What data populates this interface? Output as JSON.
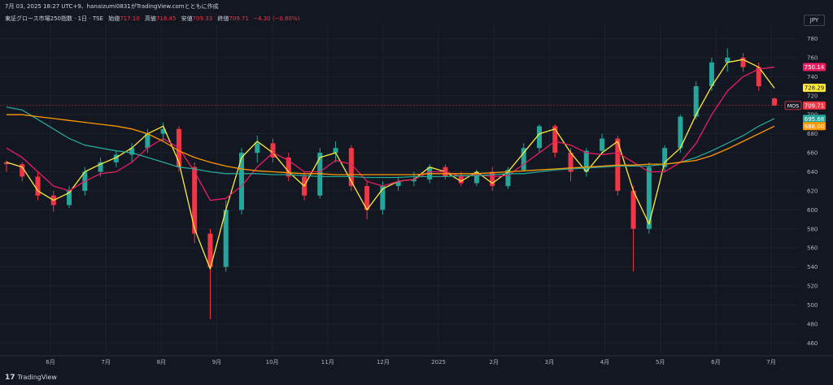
{
  "header": {
    "topline": "7月 03, 2025 18:27 UTC+9、hanaizumi0831がTradingView.comとともに作成",
    "symbol": "東証グロース市場250指数 · 1日 · TSE",
    "open_label": "始値",
    "open_value": "717.10",
    "high_label": "高値",
    "high_value": "718.45",
    "low_label": "安値",
    "low_value": "709.33",
    "close_label": "終値",
    "close_value": "709.71",
    "change": "−4.30 (−0.60%)"
  },
  "currency": "JPY",
  "footer": {
    "logo_mark": "17",
    "logo_text": "TradingView"
  },
  "colors": {
    "background": "#131722",
    "grid": "#1e222d",
    "up": "#26a69a",
    "down": "#f23645",
    "ma_yellow": "#ffeb3b",
    "ma_pink": "#e91e63",
    "ma_teal": "#26a69a",
    "ma_orange": "#ff9800"
  },
  "price_tags": [
    {
      "label": "",
      "value": "750.14",
      "color": "#e91e63"
    },
    {
      "label": "",
      "value": "728.29",
      "color": "#ffeb3b"
    },
    {
      "label": "MOS",
      "value": "709.71",
      "color": "#f23645"
    },
    {
      "label": "",
      "value": "695.68",
      "color": "#26a69a"
    },
    {
      "label": "",
      "value": "688.00",
      "color": "#ff9800"
    }
  ],
  "chart_data": {
    "type": "candlestick",
    "y_ticks": [
      460,
      480,
      500,
      520,
      540,
      560,
      580,
      600,
      620,
      640,
      660,
      680,
      700,
      720,
      740,
      760,
      780
    ],
    "ylim": [
      450,
      795
    ],
    "x_ticks": [
      "6月",
      "7月",
      "8月",
      "9月",
      "10月",
      "11月",
      "12月",
      "2025",
      "2月",
      "3月",
      "4月",
      "5月",
      "6月",
      "7月"
    ],
    "grid": true,
    "moving_averages": [
      {
        "color": "#ffeb3b",
        "values": [
          650,
          645,
          620,
          610,
          618,
          640,
          648,
          655,
          665,
          680,
          688,
          650,
          580,
          538,
          600,
          655,
          672,
          660,
          640,
          625,
          655,
          660,
          630,
          600,
          622,
          630,
          632,
          645,
          640,
          630,
          640,
          628,
          640,
          660,
          680,
          685,
          660,
          640,
          660,
          672,
          620,
          585,
          650,
          665,
          700,
          730,
          755,
          758,
          750,
          728
        ]
      },
      {
        "color": "#e91e63",
        "values": [
          665,
          655,
          640,
          625,
          620,
          630,
          638,
          640,
          650,
          665,
          675,
          665,
          640,
          610,
          612,
          625,
          645,
          660,
          652,
          640,
          640,
          652,
          648,
          630,
          625,
          630,
          632,
          640,
          640,
          635,
          637,
          635,
          636,
          648,
          660,
          672,
          668,
          660,
          658,
          660,
          650,
          640,
          640,
          650,
          670,
          700,
          725,
          740,
          748,
          750
        ]
      },
      {
        "color": "#26a69a",
        "values": [
          708,
          705,
          695,
          685,
          675,
          668,
          665,
          662,
          660,
          655,
          650,
          645,
          643,
          640,
          638,
          638,
          638,
          637,
          637,
          636,
          635,
          635,
          635,
          634,
          634,
          634,
          635,
          635,
          635,
          636,
          636,
          637,
          638,
          638,
          640,
          642,
          643,
          644,
          645,
          646,
          646,
          646,
          648,
          650,
          655,
          662,
          670,
          678,
          688,
          696
        ]
      },
      {
        "color": "#ff9800",
        "values": [
          700,
          700,
          698,
          696,
          694,
          692,
          690,
          688,
          685,
          680,
          672,
          662,
          655,
          650,
          646,
          643,
          641,
          640,
          639,
          638,
          638,
          637,
          637,
          637,
          637,
          637,
          637,
          638,
          638,
          638,
          638,
          639,
          640,
          641,
          642,
          643,
          644,
          645,
          646,
          647,
          647,
          648,
          648,
          650,
          652,
          657,
          664,
          672,
          680,
          688
        ]
      }
    ],
    "candles": [
      [
        650,
        652,
        640,
        648
      ],
      [
        648,
        650,
        630,
        635
      ],
      [
        635,
        640,
        610,
        615
      ],
      [
        615,
        620,
        598,
        605
      ],
      [
        605,
        625,
        602,
        620
      ],
      [
        620,
        645,
        615,
        640
      ],
      [
        640,
        655,
        635,
        650
      ],
      [
        650,
        662,
        645,
        658
      ],
      [
        658,
        670,
        650,
        665
      ],
      [
        665,
        685,
        660,
        680
      ],
      [
        680,
        692,
        672,
        685
      ],
      [
        685,
        688,
        640,
        645
      ],
      [
        645,
        650,
        565,
        575
      ],
      [
        575,
        580,
        485,
        540
      ],
      [
        540,
        610,
        535,
        600
      ],
      [
        600,
        665,
        595,
        660
      ],
      [
        660,
        678,
        650,
        670
      ],
      [
        670,
        675,
        650,
        655
      ],
      [
        655,
        660,
        630,
        635
      ],
      [
        635,
        640,
        610,
        615
      ],
      [
        615,
        665,
        612,
        660
      ],
      [
        660,
        672,
        650,
        665
      ],
      [
        665,
        668,
        620,
        625
      ],
      [
        625,
        630,
        590,
        600
      ],
      [
        600,
        630,
        595,
        625
      ],
      [
        625,
        635,
        620,
        630
      ],
      [
        630,
        640,
        625,
        632
      ],
      [
        632,
        648,
        628,
        645
      ],
      [
        645,
        648,
        632,
        635
      ],
      [
        635,
        640,
        625,
        628
      ],
      [
        628,
        642,
        625,
        640
      ],
      [
        640,
        645,
        620,
        625
      ],
      [
        625,
        645,
        622,
        642
      ],
      [
        642,
        670,
        640,
        665
      ],
      [
        665,
        690,
        660,
        688
      ],
      [
        688,
        690,
        655,
        660
      ],
      [
        660,
        665,
        630,
        640
      ],
      [
        640,
        665,
        635,
        662
      ],
      [
        662,
        680,
        658,
        675
      ],
      [
        675,
        678,
        615,
        620
      ],
      [
        620,
        625,
        535,
        580
      ],
      [
        580,
        650,
        575,
        645
      ],
      [
        645,
        668,
        640,
        665
      ],
      [
        665,
        700,
        660,
        698
      ],
      [
        698,
        735,
        695,
        730
      ],
      [
        730,
        760,
        725,
        755
      ],
      [
        755,
        770,
        745,
        760
      ],
      [
        760,
        765,
        745,
        750
      ],
      [
        750,
        755,
        725,
        730
      ],
      [
        717.1,
        718.45,
        709.33,
        709.71
      ]
    ]
  }
}
